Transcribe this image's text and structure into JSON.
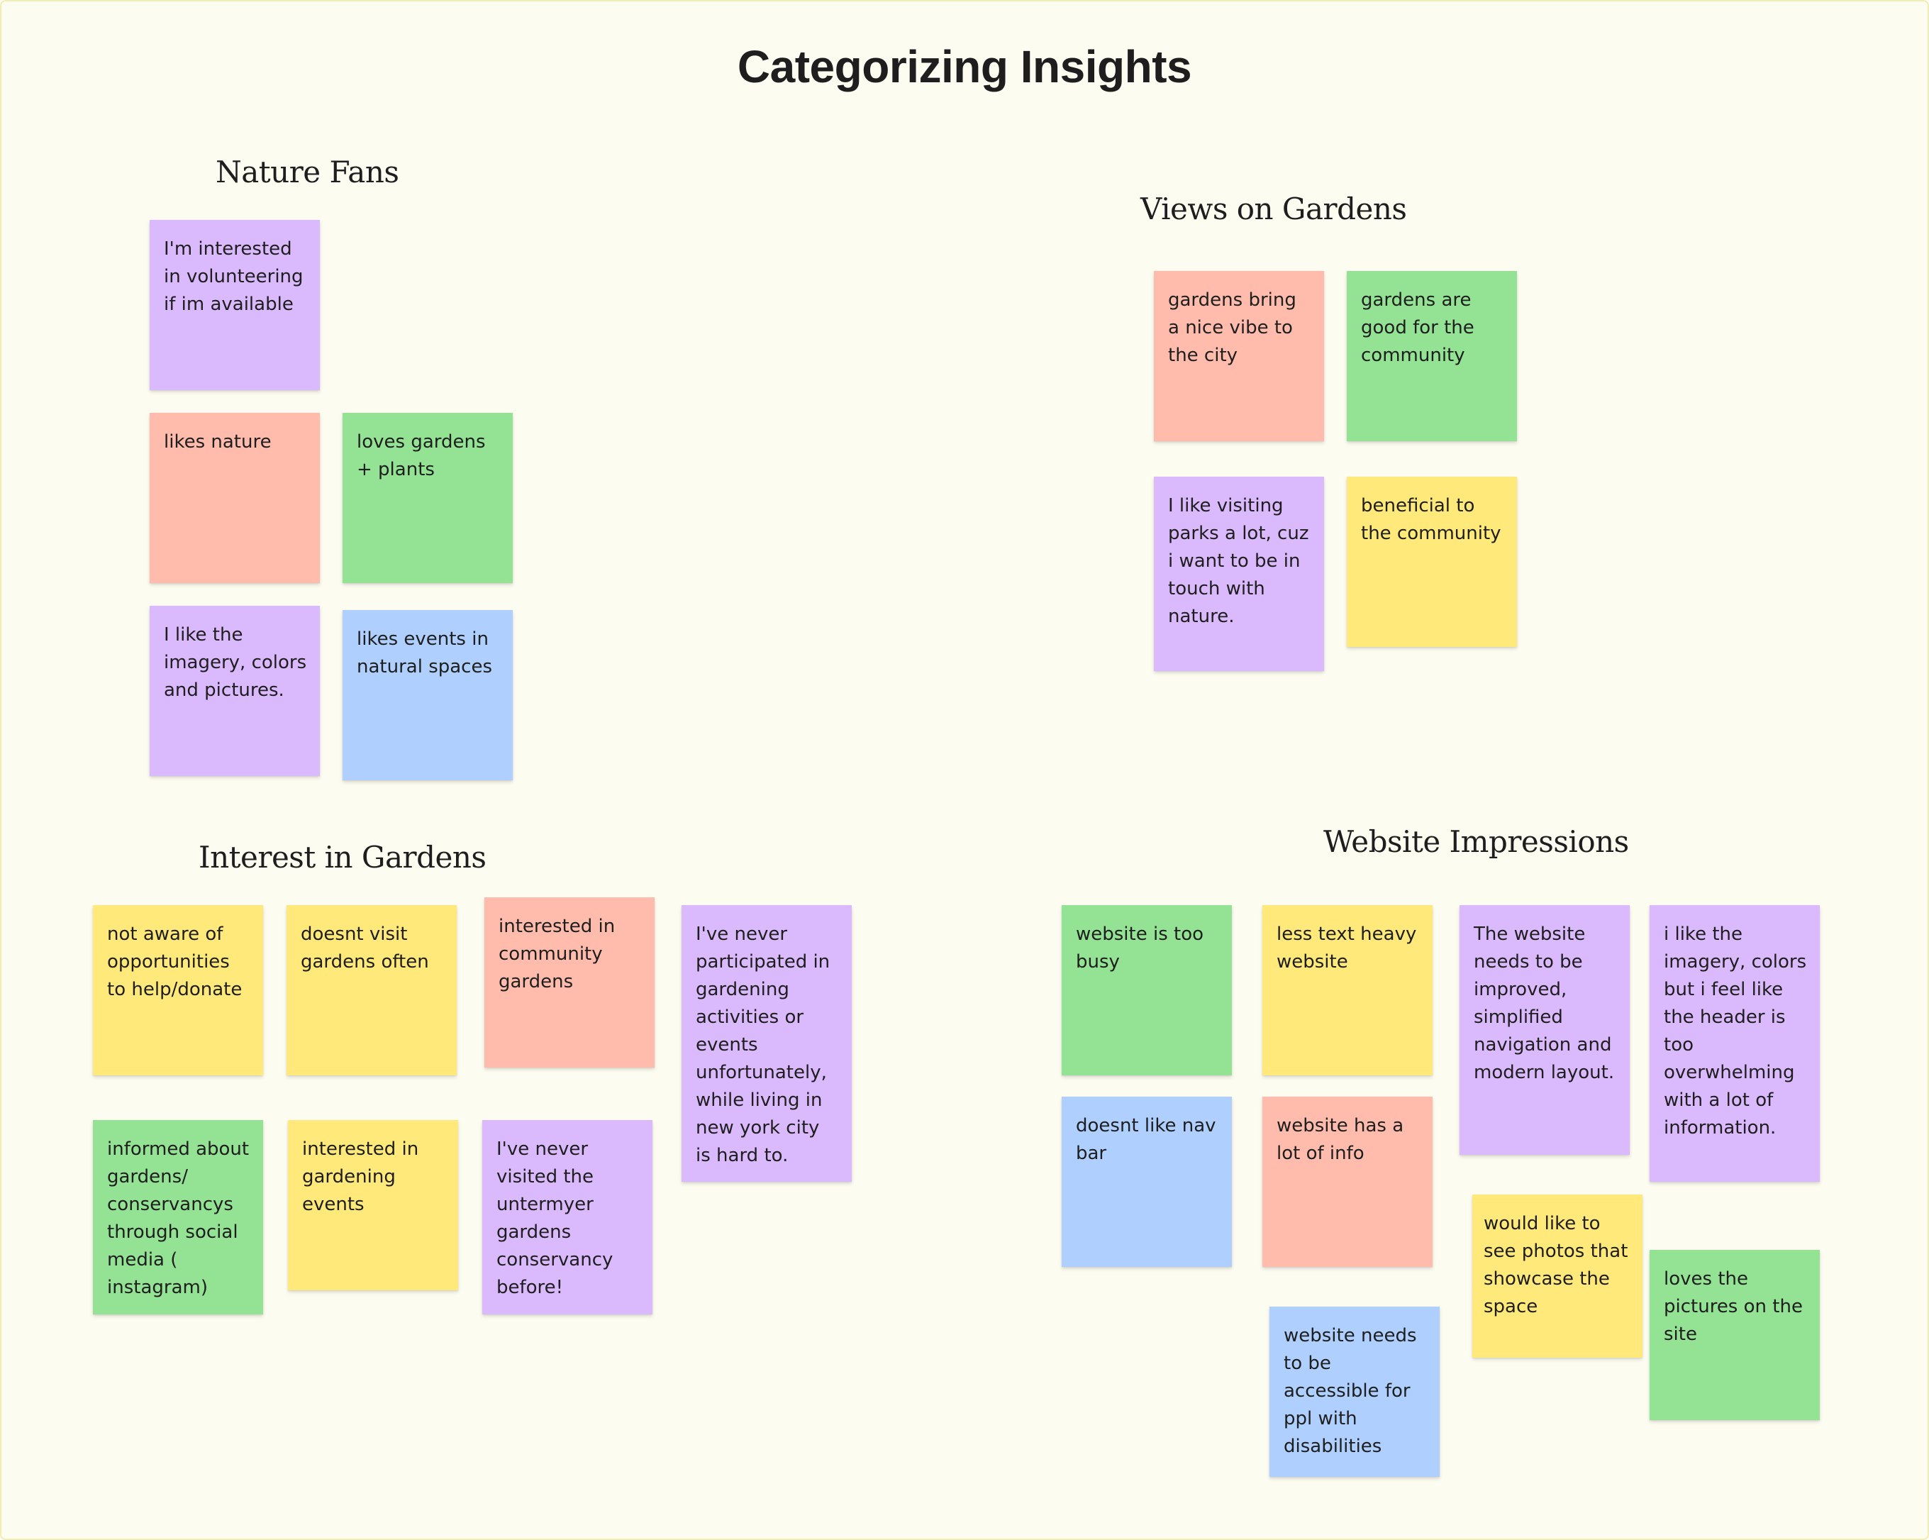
{
  "board": {
    "title": "Categorizing Insights"
  },
  "colors": {
    "background": "#fdfcf1",
    "purple": "#dabafc",
    "salmon": "#ffbcad",
    "green": "#94e394",
    "blue": "#afd0fe",
    "yellow": "#ffe97a"
  },
  "sections": {
    "nature_fans": {
      "title": "Nature Fans",
      "notes": [
        {
          "text": "I'm interested in volunteering if im available",
          "color": "purple"
        },
        {
          "text": "likes nature",
          "color": "salmon"
        },
        {
          "text": "loves gardens + plants",
          "color": "green"
        },
        {
          "text": "I like the imagery, colors and pictures.",
          "color": "purple"
        },
        {
          "text": "likes events in natural spaces",
          "color": "blue"
        }
      ]
    },
    "views_on_gardens": {
      "title": "Views on Gardens",
      "notes": [
        {
          "text": "gardens bring a nice vibe to the city",
          "color": "salmon"
        },
        {
          "text": "gardens are good for the community",
          "color": "green"
        },
        {
          "text": "I like visiting parks a lot, cuz i want to be in touch with nature.",
          "color": "purple"
        },
        {
          "text": "beneficial to the community",
          "color": "yellow"
        }
      ]
    },
    "interest_in_gardens": {
      "title": "Interest in Gardens",
      "notes": [
        {
          "text": "not aware of opportunities to help/donate",
          "color": "yellow"
        },
        {
          "text": "doesnt visit gardens often",
          "color": "yellow"
        },
        {
          "text": "interested in community gardens",
          "color": "salmon"
        },
        {
          "text": "I've never participated in gardening activities or events unfortunately, while living in new york city is hard to.",
          "color": "purple"
        },
        {
          "text": "informed about gardens/ conservancys through social media ( instagram)",
          "color": "green"
        },
        {
          "text": "interested in gardening events",
          "color": "yellow"
        },
        {
          "text": "I've never visited the untermyer gardens conservancy before!",
          "color": "purple"
        }
      ]
    },
    "website_impressions": {
      "title": "Website Impressions",
      "notes": [
        {
          "text": "website is too busy",
          "color": "green"
        },
        {
          "text": "less text heavy website",
          "color": "yellow"
        },
        {
          "text": "The website needs to be improved, simplified navigation and modern layout.",
          "color": "purple"
        },
        {
          "text": "i like the imagery, colors but i feel like the header is too overwhelming with a lot of information.",
          "color": "purple"
        },
        {
          "text": "doesnt like nav bar",
          "color": "blue"
        },
        {
          "text": "website has a lot of info",
          "color": "salmon"
        },
        {
          "text": "would like to see photos that showcase the space",
          "color": "yellow"
        },
        {
          "text": "loves the pictures on the site",
          "color": "green"
        },
        {
          "text": "website needs to be accessible for ppl with disabilities",
          "color": "blue"
        }
      ]
    }
  }
}
